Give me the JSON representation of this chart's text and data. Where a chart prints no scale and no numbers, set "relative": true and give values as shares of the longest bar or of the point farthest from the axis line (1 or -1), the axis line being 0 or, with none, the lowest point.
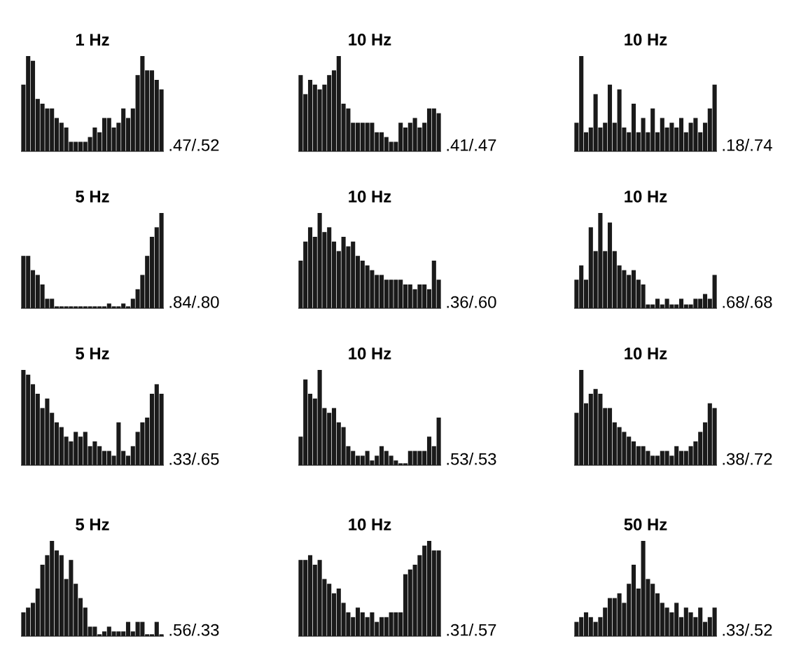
{
  "chart_data": [
    {
      "type": "bar",
      "relative": true,
      "title": "1 Hz",
      "annotations": [
        ".47/.52"
      ],
      "color": "#1a1a1a",
      "categories": [
        null,
        null,
        null,
        null,
        null,
        null,
        null,
        null,
        null,
        null,
        null,
        null,
        null,
        null,
        null,
        null,
        null,
        null,
        null,
        null,
        null,
        null,
        null,
        null,
        null,
        null,
        null,
        null,
        null,
        null
      ],
      "values": [
        0.7,
        1,
        0.95,
        0.55,
        0.5,
        0.45,
        0.45,
        0.35,
        0.3,
        0.25,
        0.1,
        0.1,
        0.1,
        0.1,
        0.15,
        0.25,
        0.2,
        0.35,
        0.35,
        0.25,
        0.3,
        0.45,
        0.35,
        0.45,
        0.8,
        1.0,
        0.85,
        0.85,
        0.75,
        0.65
      ]
    },
    {
      "type": "bar",
      "relative": true,
      "title": "10 Hz",
      "annotations": [
        ".41/.47"
      ],
      "color": "#1a1a1a",
      "categories": [
        null,
        null,
        null,
        null,
        null,
        null,
        null,
        null,
        null,
        null,
        null,
        null,
        null,
        null,
        null,
        null,
        null,
        null,
        null,
        null,
        null,
        null,
        null,
        null,
        null,
        null,
        null,
        null,
        null,
        null
      ],
      "values": [
        0.8,
        0.6,
        0.75,
        0.7,
        0.65,
        0.7,
        0.8,
        0.85,
        1.0,
        0.5,
        0.45,
        0.3,
        0.3,
        0.3,
        0.3,
        0.3,
        0.2,
        0.2,
        0.15,
        0.1,
        0.1,
        0.3,
        0.25,
        0.3,
        0.35,
        0.25,
        0.3,
        0.45,
        0.45,
        0.4
      ]
    },
    {
      "type": "bar",
      "relative": true,
      "title": "10 Hz",
      "annotations": [
        ".18/.74"
      ],
      "color": "#1a1a1a",
      "categories": [
        null,
        null,
        null,
        null,
        null,
        null,
        null,
        null,
        null,
        null,
        null,
        null,
        null,
        null,
        null,
        null,
        null,
        null,
        null,
        null,
        null,
        null,
        null,
        null,
        null,
        null,
        null,
        null,
        null,
        null
      ],
      "values": [
        0.3,
        1.0,
        0.2,
        0.25,
        0.6,
        0.25,
        0.3,
        0.7,
        0.3,
        0.65,
        0.25,
        0.2,
        0.5,
        0.2,
        0.35,
        0.2,
        0.45,
        0.2,
        0.35,
        0.25,
        0.3,
        0.25,
        0.35,
        0.2,
        0.3,
        0.35,
        0.2,
        0.3,
        0.45,
        0.7
      ]
    },
    {
      "type": "bar",
      "relative": true,
      "title": "5 Hz",
      "annotations": [
        ".84/.80"
      ],
      "color": "#1a1a1a",
      "categories": [
        null,
        null,
        null,
        null,
        null,
        null,
        null,
        null,
        null,
        null,
        null,
        null,
        null,
        null,
        null,
        null,
        null,
        null,
        null,
        null,
        null,
        null,
        null,
        null,
        null,
        null,
        null,
        null,
        null,
        null
      ],
      "values": [
        0.55,
        0.55,
        0.4,
        0.35,
        0.25,
        0.1,
        0.1,
        0.02,
        0.02,
        0.02,
        0.02,
        0.02,
        0.02,
        0.02,
        0.02,
        0.02,
        0.02,
        0.02,
        0.05,
        0.02,
        0.02,
        0.05,
        0.02,
        0.1,
        0.2,
        0.35,
        0.55,
        0.75,
        0.85,
        1.0
      ]
    },
    {
      "type": "bar",
      "relative": true,
      "title": "10 Hz",
      "annotations": [
        ".36/.60"
      ],
      "color": "#1a1a1a",
      "categories": [
        null,
        null,
        null,
        null,
        null,
        null,
        null,
        null,
        null,
        null,
        null,
        null,
        null,
        null,
        null,
        null,
        null,
        null,
        null,
        null,
        null,
        null,
        null,
        null,
        null,
        null,
        null,
        null,
        null,
        null
      ],
      "values": [
        0.5,
        0.7,
        0.85,
        0.75,
        1.0,
        0.8,
        0.85,
        0.7,
        0.6,
        0.75,
        0.65,
        0.7,
        0.55,
        0.5,
        0.45,
        0.4,
        0.35,
        0.35,
        0.3,
        0.3,
        0.3,
        0.3,
        0.25,
        0.25,
        0.2,
        0.25,
        0.25,
        0.2,
        0.5,
        0.3
      ]
    },
    {
      "type": "bar",
      "relative": true,
      "title": "10 Hz",
      "annotations": [
        ".68/.68"
      ],
      "color": "#1a1a1a",
      "categories": [
        null,
        null,
        null,
        null,
        null,
        null,
        null,
        null,
        null,
        null,
        null,
        null,
        null,
        null,
        null,
        null,
        null,
        null,
        null,
        null,
        null,
        null,
        null,
        null,
        null,
        null,
        null,
        null,
        null,
        null
      ],
      "values": [
        0.3,
        0.45,
        0.3,
        0.85,
        0.6,
        1.0,
        0.6,
        0.9,
        0.6,
        0.45,
        0.4,
        0.35,
        0.4,
        0.3,
        0.25,
        0.04,
        0.04,
        0.1,
        0.04,
        0.1,
        0.04,
        0.04,
        0.1,
        0.04,
        0.04,
        0.1,
        0.1,
        0.15,
        0.1,
        0.35
      ]
    },
    {
      "type": "bar",
      "relative": true,
      "title": "5 Hz",
      "annotations": [
        ".33/.65"
      ],
      "color": "#1a1a1a",
      "categories": [
        null,
        null,
        null,
        null,
        null,
        null,
        null,
        null,
        null,
        null,
        null,
        null,
        null,
        null,
        null,
        null,
        null,
        null,
        null,
        null,
        null,
        null,
        null,
        null,
        null,
        null,
        null,
        null,
        null,
        null
      ],
      "values": [
        1.0,
        0.95,
        0.85,
        0.75,
        0.6,
        0.7,
        0.55,
        0.45,
        0.4,
        0.3,
        0.25,
        0.35,
        0.3,
        0.35,
        0.2,
        0.25,
        0.2,
        0.15,
        0.15,
        0.1,
        0.45,
        0.15,
        0.1,
        0.2,
        0.35,
        0.45,
        0.5,
        0.75,
        0.85,
        0.75
      ]
    },
    {
      "type": "bar",
      "relative": true,
      "title": "10 Hz",
      "annotations": [
        ".53/.53"
      ],
      "color": "#1a1a1a",
      "categories": [
        null,
        null,
        null,
        null,
        null,
        null,
        null,
        null,
        null,
        null,
        null,
        null,
        null,
        null,
        null,
        null,
        null,
        null,
        null,
        null,
        null,
        null,
        null,
        null,
        null,
        null,
        null,
        null,
        null,
        null
      ],
      "values": [
        0.3,
        0.9,
        0.75,
        0.7,
        1.0,
        0.6,
        0.55,
        0.6,
        0.45,
        0.4,
        0.2,
        0.15,
        0.1,
        0.1,
        0.15,
        0.05,
        0.1,
        0.2,
        0.15,
        0.1,
        0.05,
        0.02,
        0.02,
        0.15,
        0.15,
        0.15,
        0.15,
        0.3,
        0.2,
        0.5
      ]
    },
    {
      "type": "bar",
      "relative": true,
      "title": "10 Hz",
      "annotations": [
        ".38/.72"
      ],
      "color": "#1a1a1a",
      "categories": [
        null,
        null,
        null,
        null,
        null,
        null,
        null,
        null,
        null,
        null,
        null,
        null,
        null,
        null,
        null,
        null,
        null,
        null,
        null,
        null,
        null,
        null,
        null,
        null,
        null,
        null,
        null,
        null,
        null,
        null
      ],
      "values": [
        0.55,
        1.0,
        0.65,
        0.75,
        0.8,
        0.75,
        0.6,
        0.6,
        0.45,
        0.4,
        0.35,
        0.3,
        0.25,
        0.2,
        0.2,
        0.15,
        0.1,
        0.1,
        0.15,
        0.15,
        0.1,
        0.2,
        0.15,
        0.15,
        0.2,
        0.25,
        0.35,
        0.45,
        0.65,
        0.6
      ]
    },
    {
      "type": "bar",
      "relative": true,
      "title": "5 Hz",
      "annotations": [
        ".56/.33"
      ],
      "color": "#1a1a1a",
      "categories": [
        null,
        null,
        null,
        null,
        null,
        null,
        null,
        null,
        null,
        null,
        null,
        null,
        null,
        null,
        null,
        null,
        null,
        null,
        null,
        null,
        null,
        null,
        null,
        null,
        null,
        null,
        null,
        null,
        null,
        null
      ],
      "values": [
        0.25,
        0.3,
        0.35,
        0.5,
        0.75,
        0.85,
        1.0,
        0.9,
        0.85,
        0.6,
        0.8,
        0.55,
        0.4,
        0.3,
        0.1,
        0.1,
        0.02,
        0.05,
        0.1,
        0.05,
        0.05,
        0.05,
        0.15,
        0.05,
        0.15,
        0.15,
        0.02,
        0.02,
        0.15,
        0.02
      ]
    },
    {
      "type": "bar",
      "relative": true,
      "title": "10 Hz",
      "annotations": [
        ".31/.57"
      ],
      "color": "#1a1a1a",
      "categories": [
        null,
        null,
        null,
        null,
        null,
        null,
        null,
        null,
        null,
        null,
        null,
        null,
        null,
        null,
        null,
        null,
        null,
        null,
        null,
        null,
        null,
        null,
        null,
        null,
        null,
        null,
        null,
        null,
        null,
        null
      ],
      "values": [
        0.8,
        0.8,
        0.85,
        0.75,
        0.8,
        0.6,
        0.55,
        0.45,
        0.5,
        0.35,
        0.25,
        0.2,
        0.3,
        0.25,
        0.2,
        0.25,
        0.15,
        0.2,
        0.2,
        0.25,
        0.25,
        0.25,
        0.65,
        0.7,
        0.75,
        0.85,
        0.95,
        1.0,
        0.9,
        0.9
      ]
    },
    {
      "type": "bar",
      "relative": true,
      "title": "50 Hz",
      "annotations": [
        ".33/.52"
      ],
      "color": "#1a1a1a",
      "categories": [
        null,
        null,
        null,
        null,
        null,
        null,
        null,
        null,
        null,
        null,
        null,
        null,
        null,
        null,
        null,
        null,
        null,
        null,
        null,
        null,
        null,
        null,
        null,
        null,
        null,
        null,
        null,
        null,
        null,
        null
      ],
      "values": [
        0.15,
        0.2,
        0.25,
        0.2,
        0.15,
        0.2,
        0.3,
        0.4,
        0.4,
        0.45,
        0.35,
        0.55,
        0.75,
        0.5,
        1.0,
        0.6,
        0.55,
        0.45,
        0.35,
        0.3,
        0.25,
        0.35,
        0.2,
        0.3,
        0.25,
        0.2,
        0.3,
        0.15,
        0.2,
        0.3
      ]
    }
  ]
}
